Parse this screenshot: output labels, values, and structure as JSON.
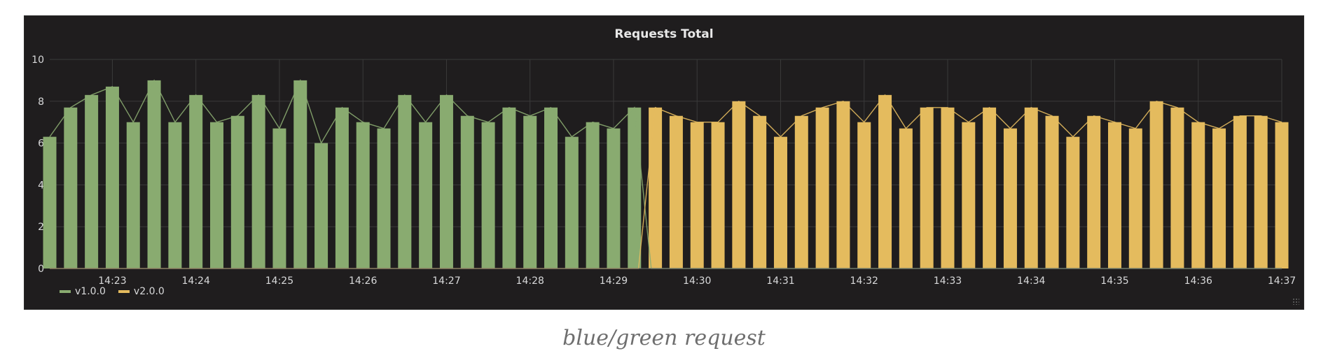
{
  "panel": {
    "title": "Requests Total"
  },
  "caption": "blue/green request",
  "colors": {
    "v1": "#89ab70",
    "v2": "#e4bb5e",
    "grid": "#3a3a3a",
    "text": "#d8d9da"
  },
  "chart_data": {
    "type": "bar",
    "title": "Requests Total",
    "xlabel": "",
    "ylabel": "",
    "ylim": [
      0,
      10
    ],
    "yticks": [
      "0",
      "2",
      "4",
      "6",
      "8",
      "10"
    ],
    "xtick_labels": [
      "14:23",
      "14:24",
      "14:25",
      "14:26",
      "14:27",
      "14:28",
      "14:29",
      "14:30",
      "14:31",
      "14:32",
      "14:33",
      "14:34",
      "14:35",
      "14:36",
      "14:37"
    ],
    "time_range": [
      "14:22:15",
      "14:37:00"
    ],
    "grid": true,
    "legend": "bottom-left",
    "series": [
      {
        "name": "v1.0.0",
        "color": "#89ab70",
        "points": [
          [
            "14:22:15",
            6.3
          ],
          [
            "14:22:30",
            7.7
          ],
          [
            "14:22:45",
            8.3
          ],
          [
            "14:23:00",
            8.7
          ],
          [
            "14:23:15",
            7.0
          ],
          [
            "14:23:30",
            9.0
          ],
          [
            "14:23:45",
            7.0
          ],
          [
            "14:24:00",
            8.3
          ],
          [
            "14:24:15",
            7.0
          ],
          [
            "14:24:30",
            7.3
          ],
          [
            "14:24:45",
            8.3
          ],
          [
            "14:25:00",
            6.7
          ],
          [
            "14:25:15",
            9.0
          ],
          [
            "14:25:30",
            6.0
          ],
          [
            "14:25:45",
            7.7
          ],
          [
            "14:26:00",
            7.0
          ],
          [
            "14:26:15",
            6.7
          ],
          [
            "14:26:30",
            8.3
          ],
          [
            "14:26:45",
            7.0
          ],
          [
            "14:27:00",
            8.3
          ],
          [
            "14:27:15",
            7.3
          ],
          [
            "14:27:30",
            7.0
          ],
          [
            "14:27:45",
            7.7
          ],
          [
            "14:28:00",
            7.3
          ],
          [
            "14:28:15",
            7.7
          ],
          [
            "14:28:30",
            6.3
          ],
          [
            "14:28:45",
            7.0
          ],
          [
            "14:29:00",
            6.7
          ],
          [
            "14:29:15",
            7.7
          ]
        ]
      },
      {
        "name": "v2.0.0",
        "color": "#e4bb5e",
        "points": [
          [
            "14:29:30",
            7.7
          ],
          [
            "14:29:45",
            7.3
          ],
          [
            "14:30:00",
            7.0
          ],
          [
            "14:30:15",
            7.0
          ],
          [
            "14:30:30",
            8.0
          ],
          [
            "14:30:45",
            7.3
          ],
          [
            "14:31:00",
            6.3
          ],
          [
            "14:31:15",
            7.3
          ],
          [
            "14:31:30",
            7.7
          ],
          [
            "14:31:45",
            8.0
          ],
          [
            "14:32:00",
            7.0
          ],
          [
            "14:32:15",
            8.3
          ],
          [
            "14:32:30",
            6.7
          ],
          [
            "14:32:45",
            7.7
          ],
          [
            "14:33:00",
            7.7
          ],
          [
            "14:33:15",
            7.0
          ],
          [
            "14:33:30",
            7.7
          ],
          [
            "14:33:45",
            6.7
          ],
          [
            "14:34:00",
            7.7
          ],
          [
            "14:34:15",
            7.3
          ],
          [
            "14:34:30",
            6.3
          ],
          [
            "14:34:45",
            7.3
          ],
          [
            "14:35:00",
            7.0
          ],
          [
            "14:35:15",
            6.7
          ],
          [
            "14:35:30",
            8.0
          ],
          [
            "14:35:45",
            7.7
          ],
          [
            "14:36:00",
            7.0
          ],
          [
            "14:36:15",
            6.7
          ],
          [
            "14:36:30",
            7.3
          ],
          [
            "14:36:45",
            7.3
          ],
          [
            "14:37:00",
            7.0
          ]
        ]
      }
    ]
  }
}
